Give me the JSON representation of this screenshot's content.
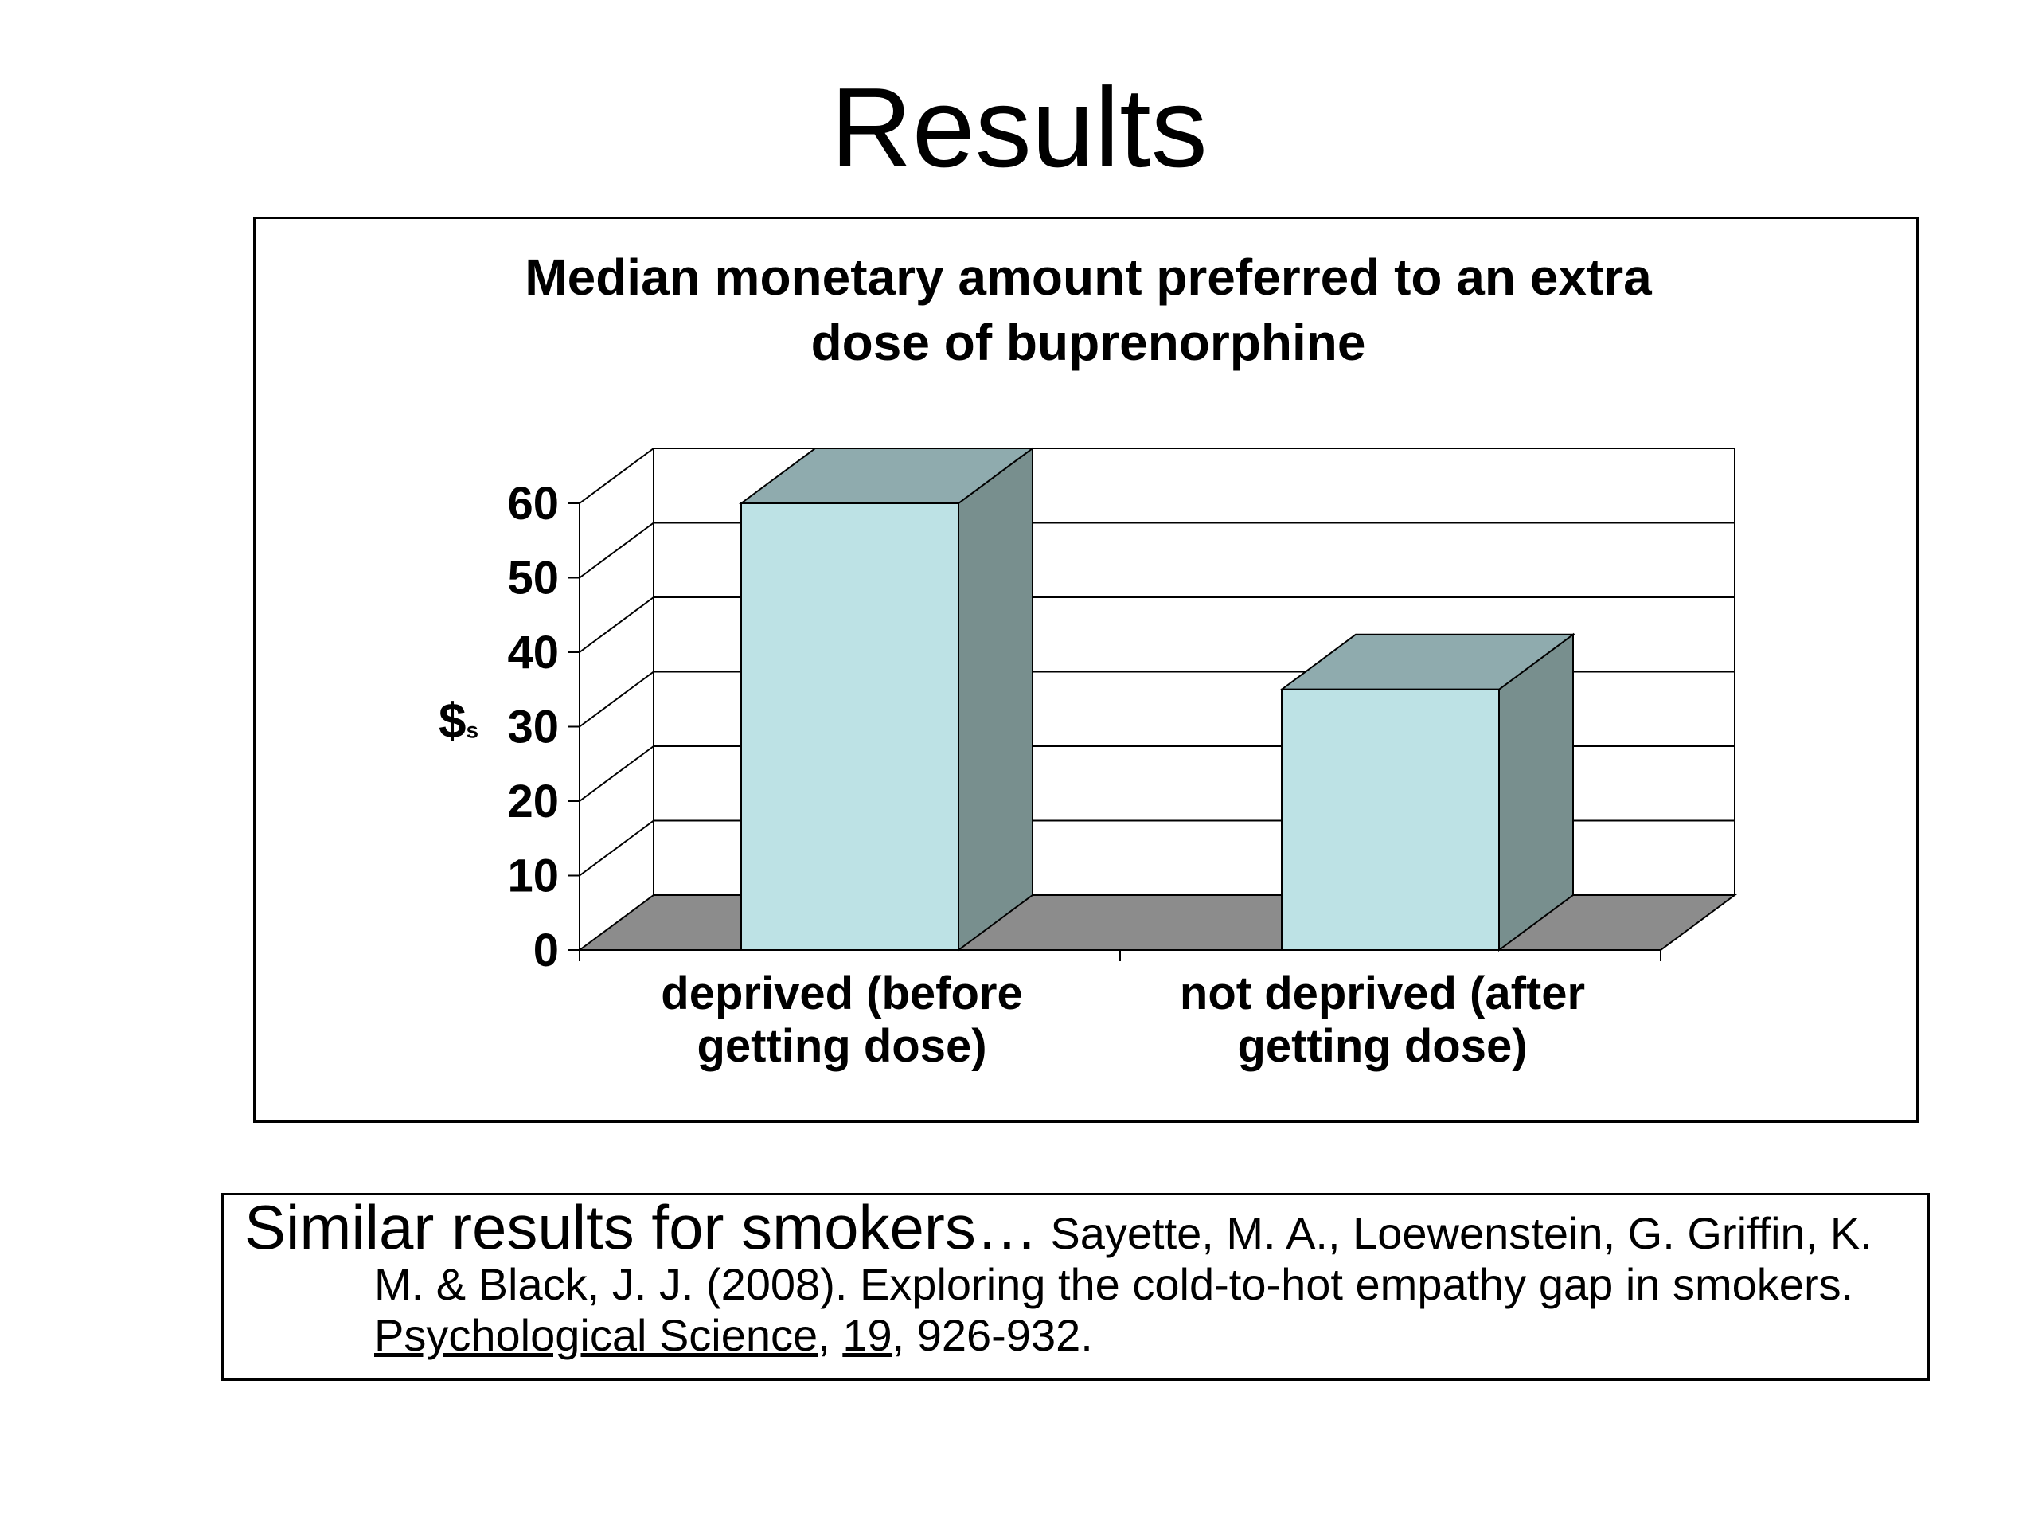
{
  "slide": {
    "title": "Results"
  },
  "chart_data": {
    "type": "bar",
    "style": "3d-column",
    "title": "Median monetary amount preferred to an extra dose of buprenorphine",
    "title_lines": [
      "Median monetary amount preferred to an extra",
      "dose of buprenorphine"
    ],
    "ylabel": "$s",
    "ylabel_main": "$",
    "ylabel_sub": "s",
    "xlabel": "",
    "ylim": [
      0,
      60
    ],
    "yticks": [
      0,
      10,
      20,
      30,
      40,
      50,
      60
    ],
    "ytick_labels": [
      "0",
      "10",
      "20",
      "30",
      "40",
      "50",
      "60"
    ],
    "grid": true,
    "legend": "none",
    "categories": [
      "deprived (before getting dose)",
      "not deprived (after getting dose)"
    ],
    "category_lines": [
      [
        "deprived (before",
        "getting dose)"
      ],
      [
        "not deprived (after",
        "getting dose)"
      ]
    ],
    "values": [
      60,
      35
    ],
    "colors": {
      "bar_front": "#bde2e5",
      "bar_top": "#8fabae",
      "bar_side": "#788f8e",
      "floor": "#8c8c8c",
      "grid": "#000000"
    }
  },
  "reference": {
    "lead": "Similar results for smokers…",
    "authors": " Sayette, M. A., Loewenstein, G. Griffin, K. M. & Black, J. J. (2008). Exploring the cold-to-hot empathy gap in smokers. ",
    "journal": "Psychological Science",
    "sep1": ", ",
    "volume": "19",
    "pages": ", 926-932."
  }
}
